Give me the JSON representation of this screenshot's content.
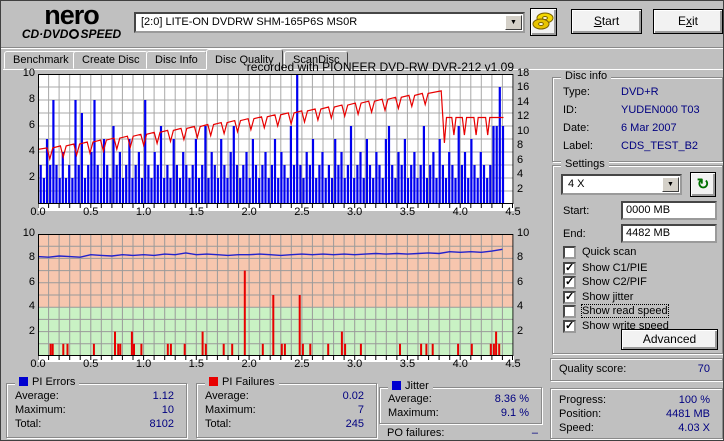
{
  "brand": {
    "top": "nero",
    "bottom_left": "CD·DVD",
    "bottom_right": "SPEED"
  },
  "toolbar": {
    "drive_selector": "[2:0]   LITE-ON DVDRW SHM-165P6S MS0R",
    "start_button": {
      "pre": "",
      "accel": "S",
      "post": "tart"
    },
    "exit_button": {
      "pre": "E",
      "accel": "x",
      "post": "it"
    }
  },
  "icons": {
    "dropdown_arrow": "▼",
    "refresh": "↻",
    "check": "✓"
  },
  "tabs": {
    "items": [
      {
        "label": "Benchmark"
      },
      {
        "label": "Create Disc"
      },
      {
        "label": "Disc Info"
      },
      {
        "label": "Disc Quality"
      },
      {
        "label": "ScanDisc"
      }
    ],
    "active": "Disc Quality"
  },
  "disc_info": {
    "legend": "Disc info",
    "rows": [
      {
        "label": "Type:",
        "value": "DVD+R"
      },
      {
        "label": "ID:",
        "value": "YUDEN000 T03"
      },
      {
        "label": "Date:",
        "value": "6 Mar 2007"
      },
      {
        "label": "Label:",
        "value": "CDS_TEST_B2"
      }
    ]
  },
  "settings": {
    "legend": "Settings",
    "speed_selected": "4 X",
    "start_label": "Start:",
    "start_value": "0000 MB",
    "end_label": "End:",
    "end_value": "4482 MB",
    "checkboxes": [
      {
        "label": "Quick scan",
        "checked": false,
        "focused": false
      },
      {
        "label": "Show C1/PIE",
        "checked": true,
        "focused": false
      },
      {
        "label": "Show C2/PIF",
        "checked": true,
        "focused": false
      },
      {
        "label": "Show jitter",
        "checked": true,
        "focused": false
      },
      {
        "label": "Show read speed",
        "checked": false,
        "focused": true
      },
      {
        "label": "Show write speed",
        "checked": true,
        "focused": false
      }
    ],
    "advanced_label": "Advanced"
  },
  "quality": {
    "label": "Quality score:",
    "value": "70"
  },
  "progress": {
    "rows": [
      {
        "label": "Progress:",
        "value": "100 %"
      },
      {
        "label": "Position:",
        "value": "4481 MB"
      },
      {
        "label": "Speed:",
        "value": "4.03 X"
      }
    ]
  },
  "stats": {
    "pi_errors": {
      "legend": "PI Errors",
      "color": "#0000d0",
      "rows": [
        [
          "Average:",
          "1.12"
        ],
        [
          "Maximum:",
          "10"
        ],
        [
          "Total:",
          "8102"
        ]
      ]
    },
    "pi_failures": {
      "legend": "PI Failures",
      "color": "#e80000",
      "rows": [
        [
          "Average:",
          "0.02"
        ],
        [
          "Maximum:",
          "7"
        ],
        [
          "Total:",
          "245"
        ]
      ]
    },
    "jitter": {
      "legend": "Jitter",
      "color": "#0000d0",
      "rows": [
        [
          "Average:",
          "8.36 %"
        ],
        [
          "Maximum:",
          "9.1 %"
        ]
      ]
    },
    "po_failures": {
      "label": "PO failures:",
      "value": "–"
    }
  },
  "chart_data": [
    {
      "id": "pie-chart",
      "type": "bar+line",
      "title": "recorded with PIONEER DVD-RW  DVR-212  v1.09",
      "x_range": [
        0,
        4.5
      ],
      "x_ticks": [
        0.0,
        0.5,
        1.0,
        1.5,
        2.0,
        2.5,
        3.0,
        3.5,
        4.0,
        4.5
      ],
      "y_left": {
        "range": [
          0,
          10
        ],
        "ticks": [
          2,
          4,
          6,
          8,
          10
        ]
      },
      "y_right": {
        "range": [
          0,
          18
        ],
        "ticks": [
          2,
          4,
          6,
          8,
          10,
          12,
          14,
          16,
          18
        ]
      },
      "grid": {
        "x_step": 0.1,
        "y_step": 1,
        "color": "#a8a8a8"
      },
      "bars": {
        "name": "PI Errors",
        "color": "#0000f0",
        "x_start": 0.015,
        "pitch": 0.03,
        "heights": [
          3,
          2,
          5,
          3,
          8,
          3,
          2,
          4,
          2,
          3,
          2,
          8,
          3,
          7,
          2,
          3,
          4,
          8,
          3,
          2,
          5,
          3,
          2,
          6,
          3,
          4,
          2,
          3,
          5,
          2,
          3,
          4,
          2,
          8,
          3,
          2,
          4,
          3,
          6,
          2,
          3,
          2,
          5,
          3,
          2,
          4,
          3,
          2,
          3,
          5,
          2,
          3,
          6,
          2,
          4,
          3,
          2,
          5,
          3,
          2,
          4,
          6,
          3,
          2,
          3,
          4,
          2,
          5,
          3,
          2,
          3,
          4,
          2,
          3,
          5,
          2,
          4,
          3,
          2,
          6,
          3,
          10,
          3,
          2,
          4,
          3,
          5,
          2,
          3,
          4,
          2,
          3,
          2,
          5,
          3,
          4,
          2,
          3,
          6,
          2,
          3,
          4,
          2,
          5,
          3,
          2,
          4,
          3,
          2,
          5,
          6,
          3,
          2,
          4,
          3,
          5,
          2,
          3,
          4,
          2,
          3,
          6,
          2,
          3,
          4,
          2,
          5,
          3,
          2,
          4,
          3,
          2,
          6,
          3,
          4,
          2,
          5,
          3,
          2,
          4,
          3,
          2,
          3,
          6,
          6,
          9,
          6
        ]
      },
      "write_speed": {
        "name": "Write speed",
        "color": "#e80000",
        "start": [
          0,
          4.2
        ],
        "peak": [
          3.82,
          8.7
        ],
        "dip_interval": 0.127,
        "dip_depth": 0.85,
        "drop": [
          3.85,
          4.7
        ],
        "post_level": 6.65,
        "post_dips": [
          3.94,
          4.04,
          4.15,
          4.26
        ],
        "post_dip_depth": 1.35,
        "end_x": 4.41
      }
    },
    {
      "id": "pif-chart",
      "type": "bar+line",
      "x_range": [
        0,
        4.5
      ],
      "x_ticks": [
        0.0,
        0.5,
        1.0,
        1.5,
        2.0,
        2.5,
        3.0,
        3.5,
        4.0,
        4.5
      ],
      "y_left": {
        "range": [
          0,
          10
        ],
        "ticks": [
          2,
          4,
          6,
          8,
          10
        ]
      },
      "y_right": {
        "range": [
          0,
          10
        ],
        "ticks": [
          2,
          4,
          6,
          8,
          10
        ]
      },
      "grid": {
        "x_step": 0.1,
        "y_step": 1,
        "color": "#9a9a9a"
      },
      "zones": {
        "boundary": 4,
        "lower_color": "#c9f2c4",
        "upper_color": "#f7c6ae"
      },
      "bars": {
        "name": "PI Failures",
        "color": "#e80000",
        "points": [
          [
            0.11,
            1
          ],
          [
            0.13,
            1
          ],
          [
            0.23,
            1
          ],
          [
            0.27,
            1
          ],
          [
            0.52,
            1
          ],
          [
            0.72,
            2
          ],
          [
            0.75,
            1
          ],
          [
            0.77,
            1
          ],
          [
            0.88,
            2
          ],
          [
            0.9,
            1
          ],
          [
            0.97,
            1
          ],
          [
            1.22,
            1
          ],
          [
            1.25,
            1
          ],
          [
            1.38,
            1
          ],
          [
            1.55,
            2
          ],
          [
            1.58,
            1
          ],
          [
            1.75,
            1
          ],
          [
            1.83,
            1
          ],
          [
            1.95,
            7
          ],
          [
            2.12,
            1
          ],
          [
            2.22,
            5
          ],
          [
            2.3,
            1
          ],
          [
            2.33,
            1
          ],
          [
            2.47,
            5
          ],
          [
            2.5,
            1
          ],
          [
            2.57,
            1
          ],
          [
            2.74,
            1
          ],
          [
            2.87,
            2
          ],
          [
            2.9,
            1
          ],
          [
            3.05,
            1
          ],
          [
            3.42,
            1
          ],
          [
            3.62,
            1
          ],
          [
            3.67,
            1
          ],
          [
            3.73,
            1
          ],
          [
            3.97,
            1
          ],
          [
            4.1,
            1
          ],
          [
            4.28,
            1
          ],
          [
            4.31,
            1
          ],
          [
            4.33,
            2
          ],
          [
            4.36,
            1
          ]
        ]
      },
      "jitter": {
        "name": "Jitter",
        "color": "#2222cc",
        "x_start": 0,
        "x_step": 0.1,
        "values": [
          8.15,
          8.1,
          8.2,
          8.15,
          8.1,
          8.3,
          8.25,
          8.2,
          8.3,
          8.25,
          8.3,
          8.25,
          8.35,
          8.3,
          8.45,
          8.3,
          8.35,
          8.3,
          8.25,
          8.3,
          8.3,
          8.35,
          8.3,
          8.25,
          8.3,
          8.35,
          8.3,
          8.35,
          8.3,
          8.35,
          8.3,
          8.35,
          8.4,
          8.35,
          8.4,
          8.35,
          8.4,
          8.45,
          8.4,
          8.55,
          8.5,
          8.55,
          8.5,
          8.6,
          8.75
        ]
      }
    }
  ]
}
